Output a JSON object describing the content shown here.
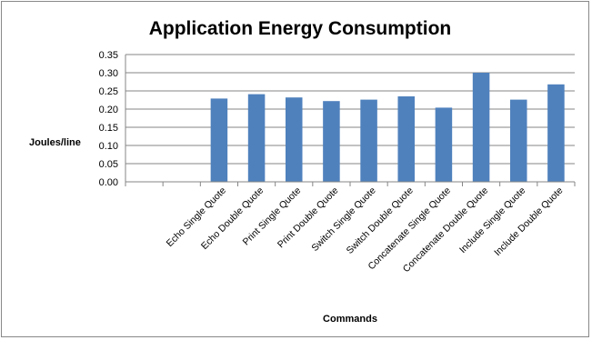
{
  "chart_data": {
    "type": "bar",
    "title": "Application Energy Consumption",
    "xlabel": "Commands",
    "ylabel": "Joules/line",
    "ylim": [
      0,
      0.35
    ],
    "yticks": [
      "0.00",
      "0.05",
      "0.10",
      "0.15",
      "0.20",
      "0.25",
      "0.30",
      "0.35"
    ],
    "grid": true,
    "legend": "none",
    "bar_color": "#4F81BD",
    "categories": [
      "",
      "",
      "Echo Single Quote",
      "Echo Double Quote",
      "Print Single Quote",
      "Print Double Quote",
      "Switch Single Quote",
      "Switch Double Quote",
      "Concatenate Single Quote",
      "Concatenate Double Quote",
      "Include Single Quote",
      "Include Double Quote"
    ],
    "values": [
      null,
      null,
      0.229,
      0.241,
      0.232,
      0.222,
      0.226,
      0.235,
      0.204,
      0.3,
      0.226,
      0.268
    ]
  }
}
